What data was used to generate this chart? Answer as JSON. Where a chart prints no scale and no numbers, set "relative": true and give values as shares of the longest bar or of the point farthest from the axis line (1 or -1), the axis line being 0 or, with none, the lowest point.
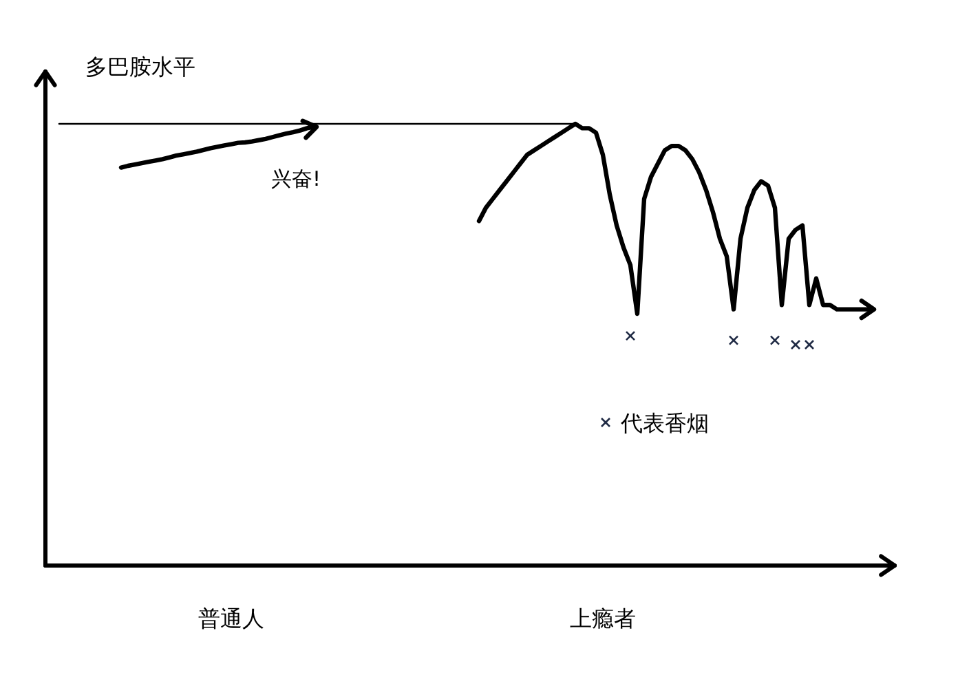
{
  "chart_data": {
    "type": "line",
    "relative": true,
    "ylabel": "多巴胺水平",
    "categories": [
      null,
      null,
      null,
      null,
      null,
      null,
      null,
      null,
      null,
      null,
      null,
      null,
      null,
      null,
      null,
      null,
      null,
      null,
      null,
      null,
      null,
      null,
      null,
      null,
      null,
      null,
      "普通人",
      null,
      null,
      null,
      null,
      null,
      null,
      null,
      null,
      null,
      null,
      null,
      null,
      null,
      null,
      null,
      null,
      null,
      null,
      null,
      null,
      null,
      null,
      null,
      null,
      null,
      null,
      null,
      null,
      null,
      null,
      null,
      null,
      null,
      null,
      null,
      null,
      null,
      null,
      null,
      null,
      null,
      null,
      null,
      null,
      null,
      null,
      null,
      null,
      null,
      null,
      null,
      null,
      null,
      "上瘾者",
      null,
      null,
      null,
      null,
      null,
      null,
      null,
      null,
      null,
      null,
      null,
      null,
      null,
      null,
      null,
      null,
      null,
      null,
      null,
      null,
      null,
      null,
      null,
      null,
      null,
      null,
      null,
      null,
      null,
      null,
      null,
      null,
      null,
      null,
      null,
      null,
      null,
      null,
      null,
      null,
      null
    ],
    "series": [
      {
        "color": "#000000",
        "values": [
          null,
          null,
          null,
          null,
          null,
          null,
          null,
          null,
          null,
          null,
          0.901,
          0.905,
          0.908,
          0.911,
          0.914,
          0.917,
          0.92,
          0.924,
          0.928,
          0.931,
          0.934,
          0.937,
          0.941,
          0.945,
          0.948,
          0.951,
          0.954,
          0.957,
          0.958,
          0.96,
          0.963,
          0.966,
          0.97,
          0.974,
          0.978,
          0.981,
          0.985,
          0.99,
          0.993,
          null,
          null,
          null,
          null,
          null,
          null,
          null,
          null,
          null,
          null,
          null,
          null,
          null,
          null,
          null,
          null,
          null,
          null,
          null,
          null,
          null,
          null,
          null,
          null,
          null,
          null,
          null,
          null,
          null,
          null,
          null,
          null,
          null,
          null,
          null,
          null,
          null,
          null,
          null,
          null,
          null,
          null,
          null,
          null,
          null,
          null,
          null,
          null,
          null,
          null,
          null,
          null,
          null,
          null,
          null,
          null,
          null,
          null,
          null,
          null,
          null,
          null,
          null,
          null,
          null,
          null,
          null,
          null,
          null,
          null,
          null,
          null,
          null,
          null,
          null,
          null,
          null,
          null,
          null,
          null,
          null,
          null,
          null
        ]
      },
      {
        "color": "#000000",
        "values": [
          null,
          null,
          null,
          null,
          null,
          null,
          null,
          null,
          null,
          null,
          null,
          null,
          null,
          null,
          null,
          null,
          null,
          null,
          null,
          null,
          null,
          null,
          null,
          null,
          null,
          null,
          null,
          null,
          null,
          null,
          null,
          null,
          null,
          null,
          null,
          null,
          null,
          null,
          null,
          null,
          null,
          null,
          null,
          null,
          null,
          null,
          null,
          null,
          null,
          null,
          null,
          null,
          null,
          null,
          null,
          null,
          null,
          null,
          null,
          null,
          null,
          null,
          0.78,
          0.81,
          0.83,
          0.85,
          0.87,
          0.89,
          0.91,
          0.93,
          0.94,
          0.95,
          0.96,
          0.97,
          0.98,
          0.99,
          1,
          0.99,
          0.99,
          0.98,
          0.93,
          0.84,
          0.77,
          0.72,
          0.68,
          0.57,
          0.83,
          0.88,
          0.91,
          0.94,
          0.95,
          0.95,
          0.94,
          0.92,
          0.89,
          0.85,
          0.8,
          0.74,
          0.7,
          0.58,
          0.74,
          0.81,
          0.85,
          0.87,
          0.86,
          0.81,
          0.59,
          0.74,
          0.76,
          0.77,
          0.59,
          0.65,
          0.59,
          0.59,
          0.58,
          0.58,
          0.58,
          0.58,
          0.58,
          0.58,
          null,
          null
        ]
      },
      {
        "color": "#000000",
        "values": [
          null,
          1,
          1,
          1,
          1,
          1,
          1,
          1,
          1,
          1,
          1,
          1,
          1,
          1,
          1,
          1,
          1,
          1,
          1,
          1,
          1,
          1,
          1,
          1,
          1,
          1,
          1,
          1,
          1,
          1,
          1,
          1,
          1,
          1,
          1,
          1,
          1,
          1,
          1,
          1,
          1,
          1,
          1,
          1,
          1,
          1,
          1,
          1,
          1,
          1,
          1,
          1,
          1,
          1,
          1,
          1,
          1,
          1,
          1,
          1,
          1,
          1,
          1,
          1,
          1,
          1,
          1,
          1,
          1,
          1,
          1,
          1,
          1,
          1,
          1,
          1,
          1,
          null,
          null,
          null,
          null,
          null,
          null,
          null,
          null,
          null,
          null,
          null,
          null,
          null,
          null,
          null,
          null,
          null,
          null,
          null,
          null,
          null,
          null,
          null,
          null,
          null,
          null,
          null,
          null,
          null,
          null,
          null,
          null,
          null,
          null,
          null,
          null,
          null,
          null,
          null,
          null,
          null,
          null,
          null,
          null,
          null
        ]
      },
      {
        "type": "scatter",
        "name": "代表香烟",
        "color": "#1f2a44",
        "marker": "cross",
        "values": [
          null,
          null,
          null,
          null,
          null,
          null,
          null,
          null,
          null,
          null,
          null,
          null,
          null,
          null,
          null,
          null,
          null,
          null,
          null,
          null,
          null,
          null,
          null,
          null,
          null,
          null,
          null,
          null,
          null,
          null,
          null,
          null,
          null,
          null,
          null,
          null,
          null,
          null,
          null,
          null,
          null,
          null,
          null,
          null,
          null,
          null,
          null,
          null,
          null,
          null,
          null,
          null,
          null,
          null,
          null,
          null,
          null,
          null,
          null,
          null,
          null,
          null,
          null,
          null,
          null,
          null,
          null,
          null,
          null,
          null,
          null,
          null,
          null,
          null,
          null,
          null,
          null,
          null,
          null,
          null,
          null,
          null,
          null,
          null,
          0.52,
          null,
          null,
          null,
          null,
          null,
          null,
          null,
          null,
          null,
          null,
          null,
          null,
          null,
          null,
          0.51,
          null,
          null,
          null,
          null,
          null,
          0.51,
          null,
          null,
          0.5,
          null,
          0.5,
          null,
          null,
          null,
          null,
          null,
          null,
          null,
          null,
          null,
          null,
          null
        ]
      }
    ],
    "annotations": [
      "兴奋!"
    ],
    "legend": "bottom right"
  }
}
